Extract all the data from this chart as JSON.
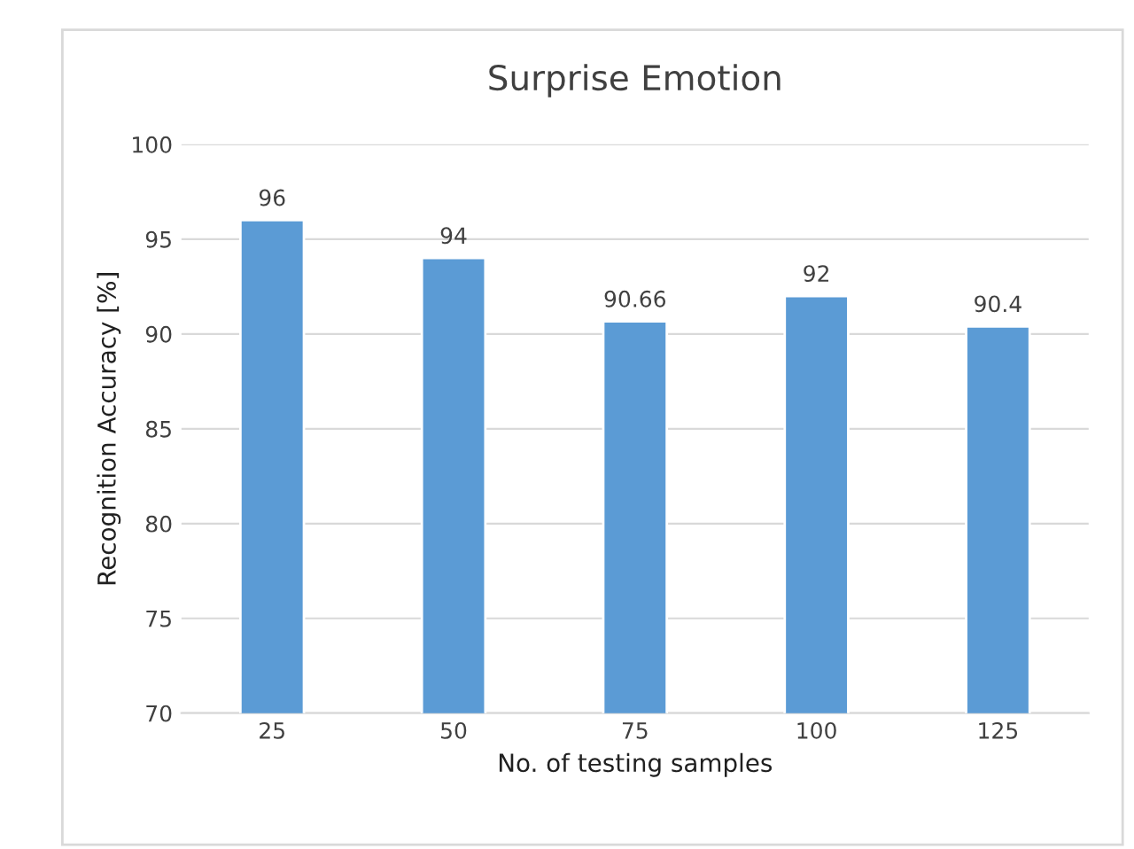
{
  "chart_data": {
    "type": "bar",
    "title": "Surprise Emotion",
    "xlabel": "No. of testing samples",
    "ylabel": "Recognition Accuracy [%]",
    "categories": [
      "25",
      "50",
      "75",
      "100",
      "125"
    ],
    "values": [
      96,
      94,
      90.66,
      92,
      90.4
    ],
    "color": "#5b9bd5",
    "ylim": [
      70,
      100
    ],
    "yticks": [
      70,
      75,
      80,
      85,
      90,
      95,
      100
    ],
    "grid": "y",
    "data_labels": true
  }
}
